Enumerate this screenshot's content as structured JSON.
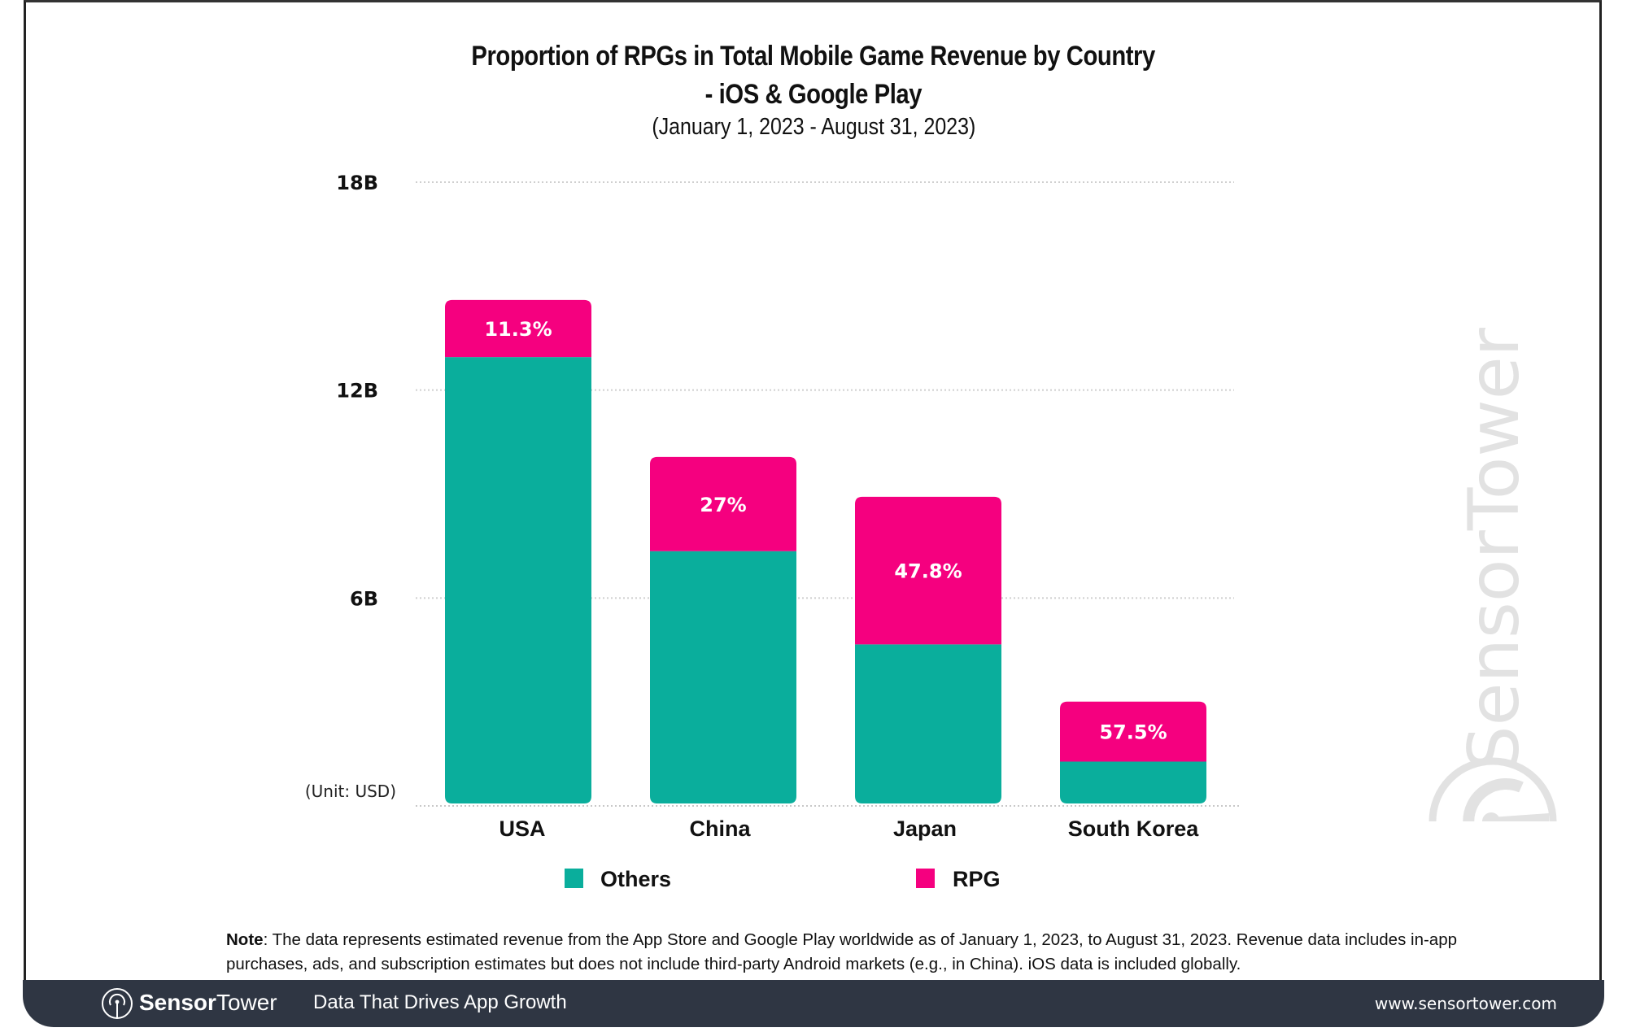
{
  "header": {
    "title_line1": "Proportion of RPGs in Total Mobile Game Revenue by Country",
    "title_line2": "- iOS & Google Play",
    "subtitle": "(January 1, 2023 - August 31, 2023)"
  },
  "colors": {
    "others": "#0aae9c",
    "rpg": "#f5007f",
    "footer_bg": "#2f3643",
    "watermark": "#e2e2e2"
  },
  "chart_data": {
    "type": "bar",
    "stacked": true,
    "title": "Proportion of RPGs in Total Mobile Game Revenue by Country - iOS & Google Play",
    "subtitle": "(January 1, 2023 - August 31, 2023)",
    "xlabel": "",
    "ylabel": "",
    "unit_label": "(Unit: USD)",
    "categories": [
      "USA",
      "China",
      "Japan",
      "South Korea"
    ],
    "ylim": [
      0,
      18
    ],
    "yticks": [
      6,
      12,
      18
    ],
    "ytick_labels": [
      "6B",
      "12B",
      "18B"
    ],
    "grid": true,
    "legend_position": "bottom",
    "series": [
      {
        "name": "Others",
        "values": [
          12.95,
          7.35,
          4.66,
          1.28
        ]
      },
      {
        "name": "RPG",
        "values": [
          1.65,
          2.72,
          4.26,
          1.73
        ]
      }
    ],
    "data_labels": [
      "11.3%",
      "27%",
      "47.8%",
      "57.5%"
    ],
    "data_labels_series": "RPG"
  },
  "legend": [
    {
      "label": "Others",
      "series": "others"
    },
    {
      "label": "RPG",
      "series": "rpg"
    }
  ],
  "note": {
    "label": "Note",
    "text": ": The data represents estimated revenue from the App Store and Google Play worldwide as of January 1, 2023, to August 31, 2023. Revenue data includes in-app purchases, ads, and subscription estimates but does not include third-party Android markets (e.g., in China). iOS data is included globally."
  },
  "footer": {
    "brand_bold": "Sensor",
    "brand_light": "Tower",
    "tagline": "Data That Drives App Growth",
    "url": "www.sensortower.com"
  },
  "watermark": {
    "text": "SensorTower",
    "icon": "sensortower-logo-icon"
  }
}
